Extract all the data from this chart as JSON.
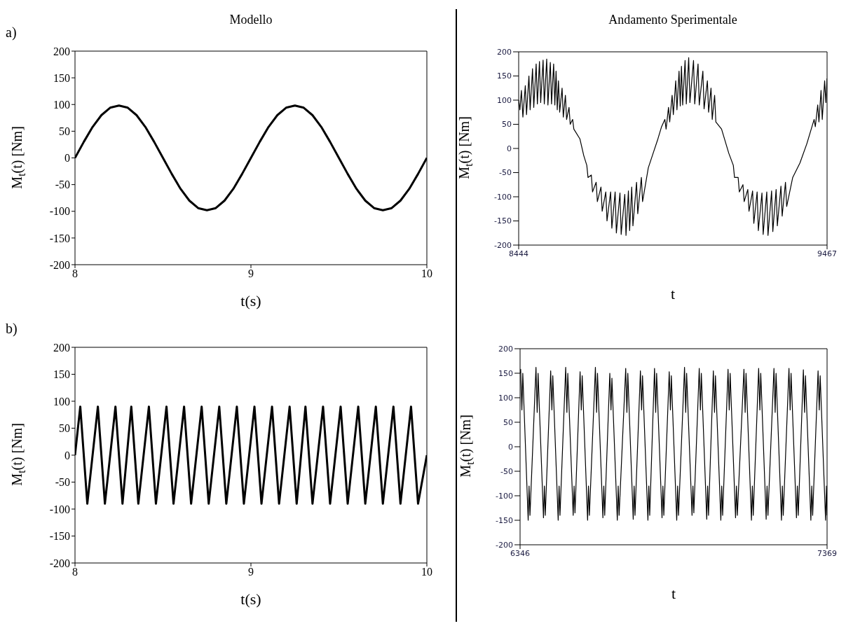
{
  "chart_data": [
    {
      "type": "line",
      "title": "Modello",
      "annotations": [
        "a)"
      ],
      "xlabel": "t(s)",
      "ylabel": "M$_{t}$(t) [Nm]",
      "xlim": [
        8,
        10
      ],
      "xticks": [
        8,
        9,
        10
      ],
      "ylim": [
        -200,
        200
      ],
      "yticks": [
        -200,
        -150,
        -100,
        -50,
        0,
        50,
        100,
        150,
        200
      ],
      "marker": "none",
      "series": [
        {
          "color": "#000000",
          "x": [
            8.0,
            8.05,
            8.1,
            8.15,
            8.2,
            8.25,
            8.3,
            8.35,
            8.4,
            8.45,
            8.5,
            8.55,
            8.6,
            8.65,
            8.7,
            8.75,
            8.8,
            8.85,
            8.9,
            8.95,
            9.0,
            9.05,
            9.1,
            9.15,
            9.2,
            9.25,
            9.3,
            9.35,
            9.4,
            9.45,
            9.5,
            9.55,
            9.6,
            9.65,
            9.7,
            9.75,
            9.8,
            9.85,
            9.9,
            9.95,
            10.0
          ],
          "values": [
            0,
            30,
            58,
            80,
            94,
            98,
            94,
            80,
            58,
            30,
            0,
            -30,
            -58,
            -80,
            -94,
            -98,
            -94,
            -80,
            -58,
            -30,
            0,
            30,
            58,
            80,
            94,
            98,
            94,
            80,
            58,
            30,
            0,
            -30,
            -58,
            -80,
            -94,
            -98,
            -94,
            -80,
            -58,
            -30,
            0
          ]
        }
      ]
    },
    {
      "type": "line",
      "title": "Andamento Sperimentale",
      "xlabel": "t",
      "ylabel": "M$_{t}$(t) [Nm]",
      "xlim": [
        8444,
        9467
      ],
      "xticks": [
        8444,
        9467
      ],
      "ylim": [
        -200,
        200
      ],
      "yticks": [
        -200,
        -150,
        -100,
        -50,
        0,
        50,
        100,
        150,
        200
      ],
      "marker": "none",
      "series": [
        {
          "color": "#000000",
          "x": [
            8444,
            8448,
            8453,
            8458,
            8466,
            8470,
            8478,
            8482,
            8490,
            8494,
            8502,
            8506,
            8513,
            8517,
            8525,
            8529,
            8537,
            8541,
            8549,
            8553,
            8560,
            8564,
            8568,
            8572,
            8576,
            8580,
            8588,
            8592,
            8599,
            8603,
            8611,
            8615,
            8623,
            8627,
            8647,
            8660,
            8670,
            8674,
            8685,
            8689,
            8701,
            8705,
            8717,
            8721,
            8733,
            8737,
            8749,
            8753,
            8764,
            8768,
            8780,
            8784,
            8796,
            8800,
            8808,
            8812,
            8819,
            8823,
            8835,
            8839,
            8851,
            8855,
            8874,
            8890,
            8906,
            8918,
            8929,
            8933,
            8941,
            8945,
            8953,
            8957,
            8965,
            8969,
            8976,
            8980,
            8984,
            8988,
            8996,
            9000,
            9008,
            9012,
            9024,
            9028,
            9039,
            9043,
            9055,
            9059,
            9070,
            9074,
            9082,
            9086,
            9094,
            9098,
            9117,
            9141,
            9156,
            9160,
            9172,
            9176,
            9188,
            9192,
            9204,
            9208,
            9220,
            9224,
            9235,
            9239,
            9251,
            9255,
            9267,
            9271,
            9283,
            9287,
            9298,
            9302,
            9314,
            9318,
            9329,
            9333,
            9353,
            9377,
            9400,
            9412,
            9424,
            9428,
            9436,
            9440,
            9447,
            9451,
            9459,
            9463,
            9467
          ],
          "values": [
            100,
            80,
            120,
            65,
            130,
            70,
            150,
            80,
            165,
            85,
            175,
            92,
            180,
            95,
            183,
            92,
            185,
            90,
            178,
            92,
            175,
            90,
            160,
            80,
            140,
            75,
            125,
            65,
            110,
            60,
            85,
            50,
            60,
            40,
            20,
            -15,
            -35,
            -60,
            -55,
            -90,
            -70,
            -110,
            -80,
            -130,
            -90,
            -150,
            -90,
            -165,
            -90,
            -175,
            -92,
            -178,
            -95,
            -180,
            -88,
            -170,
            -80,
            -160,
            -70,
            -135,
            -60,
            -110,
            -40,
            -10,
            20,
            45,
            60,
            40,
            85,
            55,
            110,
            70,
            140,
            80,
            160,
            88,
            170,
            90,
            182,
            92,
            188,
            95,
            182,
            92,
            175,
            90,
            160,
            82,
            140,
            75,
            125,
            60,
            110,
            55,
            40,
            -10,
            -35,
            -60,
            -60,
            -90,
            -75,
            -110,
            -85,
            -130,
            -88,
            -155,
            -90,
            -170,
            -92,
            -178,
            -90,
            -180,
            -88,
            -172,
            -85,
            -160,
            -78,
            -140,
            -70,
            -120,
            -60,
            -30,
            10,
            35,
            60,
            45,
            90,
            55,
            120,
            60,
            140,
            95,
            145
          ]
        }
      ]
    },
    {
      "type": "line",
      "annotations": [
        "b)"
      ],
      "xlabel": "t(s)",
      "ylabel": "M$_{t}$(t) [Nm]",
      "xlim": [
        8,
        10
      ],
      "xticks": [
        8,
        9,
        10
      ],
      "ylim": [
        -200,
        200
      ],
      "yticks": [
        -200,
        -150,
        -100,
        -50,
        0,
        50,
        100,
        150,
        200
      ],
      "marker": "none",
      "series": [
        {
          "color": "#000000",
          "x": [
            8.0,
            8.03,
            8.07,
            8.13,
            8.17,
            8.23,
            8.27,
            8.32,
            8.36,
            8.42,
            8.46,
            8.52,
            8.56,
            8.62,
            8.66,
            8.72,
            8.76,
            8.82,
            8.86,
            8.92,
            8.96,
            9.02,
            9.06,
            9.12,
            9.16,
            9.22,
            9.26,
            9.31,
            9.35,
            9.41,
            9.45,
            9.51,
            9.55,
            9.61,
            9.65,
            9.71,
            9.75,
            9.81,
            9.85,
            9.91,
            9.95,
            10.0
          ],
          "values": [
            0,
            90,
            -90,
            90,
            -90,
            90,
            -90,
            90,
            -90,
            90,
            -90,
            90,
            -90,
            90,
            -90,
            90,
            -90,
            90,
            -90,
            90,
            -90,
            90,
            -90,
            90,
            -90,
            90,
            -90,
            90,
            -90,
            90,
            -90,
            90,
            -90,
            90,
            -90,
            90,
            -90,
            90,
            -90,
            90,
            -90,
            0
          ]
        }
      ]
    },
    {
      "type": "line",
      "xlabel": "t",
      "ylabel": "M$_{t}$(t) [Nm]",
      "xlim": [
        6346,
        7369
      ],
      "xticks": [
        6346,
        7369
      ],
      "ylim": [
        -200,
        200
      ],
      "yticks": [
        -200,
        -150,
        -100,
        -50,
        0,
        50,
        100,
        150,
        200
      ],
      "marker": "none",
      "series": [
        {
          "color": "#000000",
          "x": [
            6346,
            6348,
            6352,
            6355,
            6373,
            6376,
            6379,
            6399,
            6403,
            6406,
            6424,
            6427,
            6430,
            6448,
            6452,
            6455,
            6473,
            6476,
            6479,
            6498,
            6502,
            6505,
            6523,
            6526,
            6529,
            6546,
            6550,
            6553,
            6571,
            6574,
            6577,
            6597,
            6601,
            6604,
            6622,
            6625,
            6628,
            6645,
            6649,
            6652,
            6670,
            6673,
            6676,
            6698,
            6702,
            6705,
            6723,
            6726,
            6729,
            6747,
            6751,
            6754,
            6772,
            6775,
            6778,
            6794,
            6798,
            6801,
            6819,
            6822,
            6825,
            6843,
            6847,
            6850,
            6868,
            6871,
            6874,
            6894,
            6898,
            6901,
            6919,
            6922,
            6925,
            6943,
            6947,
            6950,
            6968,
            6971,
            6974,
            6990,
            6994,
            6997,
            7015,
            7018,
            7021,
            7039,
            7043,
            7046,
            7064,
            7067,
            7070,
            7092,
            7096,
            7099,
            7117,
            7120,
            7123,
            7141,
            7145,
            7148,
            7166,
            7169,
            7172,
            7192,
            7196,
            7199,
            7217,
            7220,
            7223,
            7242,
            7246,
            7249,
            7267,
            7270,
            7273,
            7290,
            7294,
            7297,
            7315,
            7318,
            7321,
            7339,
            7343,
            7346,
            7364,
            7367,
            7369
          ],
          "values": [
            150,
            158,
            75,
            150,
            -150,
            -80,
            -140,
            162,
            70,
            150,
            -145,
            -80,
            -140,
            155,
            75,
            145,
            -150,
            -80,
            -140,
            162,
            70,
            150,
            -140,
            -80,
            -135,
            153,
            75,
            145,
            -150,
            -80,
            -140,
            162,
            70,
            150,
            -145,
            -80,
            -140,
            150,
            75,
            140,
            -150,
            -80,
            -140,
            160,
            70,
            150,
            -148,
            -80,
            -140,
            155,
            75,
            145,
            -150,
            -80,
            -140,
            160,
            70,
            150,
            -145,
            -80,
            -140,
            153,
            75,
            145,
            -150,
            -80,
            -140,
            162,
            70,
            150,
            -140,
            -80,
            -135,
            160,
            75,
            150,
            -148,
            -80,
            -140,
            155,
            70,
            145,
            -150,
            -80,
            -140,
            158,
            75,
            150,
            -145,
            -80,
            -140,
            158,
            70,
            150,
            -150,
            -80,
            -140,
            160,
            75,
            150,
            -148,
            -80,
            -140,
            160,
            70,
            150,
            -150,
            -80,
            -140,
            160,
            75,
            150,
            -145,
            -80,
            -140,
            157,
            70,
            145,
            -150,
            -80,
            -140,
            155,
            75,
            145,
            -150,
            -80,
            -140
          ]
        }
      ]
    }
  ]
}
